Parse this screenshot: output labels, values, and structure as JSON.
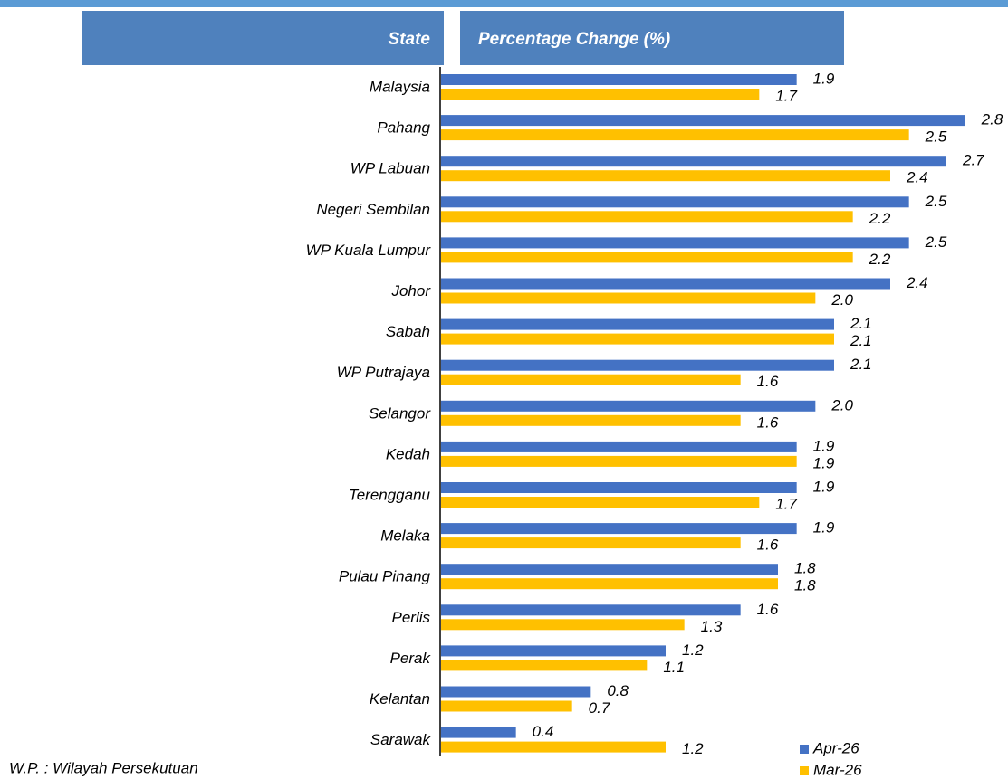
{
  "chart_data": {
    "type": "barh",
    "column_headers": [
      "State",
      "Percentage Change (%)"
    ],
    "categories": [
      "Malaysia",
      "Pahang",
      "WP Labuan",
      "Negeri Sembilan",
      "WP Kuala Lumpur",
      "Johor",
      "Sabah",
      "WP Putrajaya",
      "Selangor",
      "Kedah",
      "Terengganu",
      "Melaka",
      "Pulau Pinang",
      "Perlis",
      "Perak",
      "Kelantan",
      "Sarawak"
    ],
    "series": [
      {
        "name": "Apr-26",
        "color": "#4472c4",
        "values": [
          1.9,
          2.8,
          2.7,
          2.5,
          2.5,
          2.4,
          2.1,
          2.1,
          2.0,
          1.9,
          1.9,
          1.9,
          1.8,
          1.6,
          1.2,
          0.8,
          0.4
        ],
        "value_labels": [
          "1.9",
          "2.8",
          "2.7",
          "2.5",
          "2.5",
          "2.4",
          "2.1",
          "2.1",
          "2.0",
          "1.9",
          "1.9",
          "1.9",
          "1.8",
          "1.6",
          "1.2",
          "0.8",
          "0.4"
        ]
      },
      {
        "name": "Mar-26",
        "color": "#ffc000",
        "values": [
          1.7,
          2.5,
          2.4,
          2.2,
          2.2,
          2.0,
          2.1,
          1.6,
          1.6,
          1.9,
          1.7,
          1.6,
          1.8,
          1.3,
          1.1,
          0.7,
          1.2
        ],
        "value_labels": [
          "1.7",
          "2.5",
          "2.4",
          "2.2",
          "2.2",
          "2.0",
          "2.1",
          "1.6",
          "1.6",
          "1.9",
          "1.7",
          "1.6",
          "1.8",
          "1.3",
          "1.1",
          "0.7",
          "1.2"
        ]
      }
    ],
    "xlim": [
      0,
      3
    ],
    "legend": "bottom-right",
    "note": "W.P. : Wilayah Persekutuan"
  }
}
